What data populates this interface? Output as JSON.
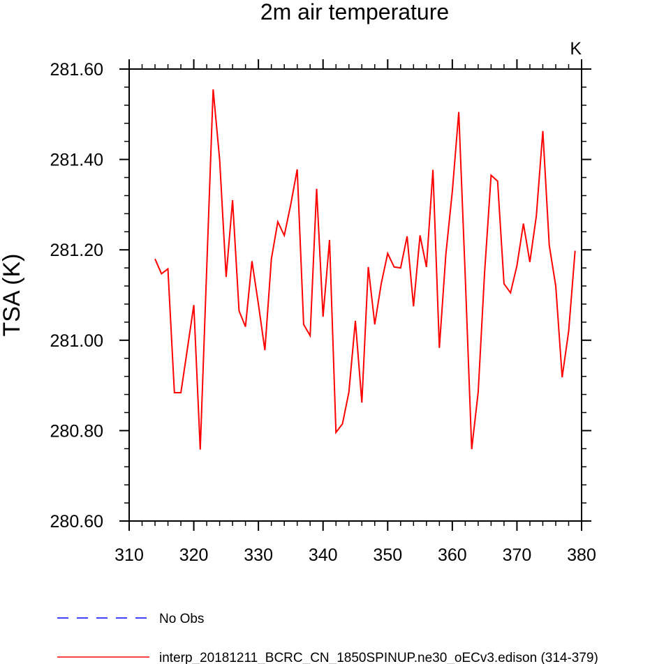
{
  "chart_data": {
    "type": "line",
    "title": "2m air temperature",
    "xlabel": "",
    "ylabel": "TSA  (K)",
    "units": "K",
    "xlim": [
      310,
      380
    ],
    "ylim": [
      280.6,
      281.6
    ],
    "xticks": [
      310,
      320,
      330,
      340,
      350,
      360,
      370,
      380
    ],
    "xtick_labels": [
      "310",
      "320",
      "330",
      "340",
      "350",
      "360",
      "370",
      "380"
    ],
    "yticks": [
      280.6,
      280.8,
      281.0,
      281.2,
      281.4,
      281.6
    ],
    "ytick_labels": [
      "280.60",
      "280.80",
      "281.00",
      "281.20",
      "281.40",
      "281.60"
    ],
    "grid": false,
    "legend_position": "bottom",
    "x": [
      314,
      315,
      316,
      317,
      318,
      319,
      320,
      321,
      322,
      323,
      324,
      325,
      326,
      327,
      328,
      329,
      330,
      331,
      332,
      333,
      334,
      335,
      336,
      337,
      338,
      339,
      340,
      341,
      342,
      343,
      344,
      345,
      346,
      347,
      348,
      349,
      350,
      351,
      352,
      353,
      354,
      355,
      356,
      357,
      358,
      359,
      360,
      361,
      362,
      363,
      364,
      365,
      366,
      367,
      368,
      369,
      370,
      371,
      372,
      373,
      374,
      375,
      376,
      377,
      378,
      379
    ],
    "series": [
      {
        "name": "interp_20181211_BCRC_CN_1850SPINUP.ne30_oECv3.edison (314-379)",
        "color": "#ff0000",
        "dash": "solid",
        "values": [
          281.18,
          281.147,
          281.158,
          280.884,
          280.884,
          280.98,
          281.078,
          280.758,
          281.16,
          281.555,
          281.4,
          281.14,
          281.31,
          281.065,
          281.03,
          281.175,
          281.08,
          280.978,
          281.18,
          281.262,
          281.232,
          281.3,
          281.378,
          281.035,
          281.01,
          281.335,
          281.052,
          281.222,
          280.796,
          280.815,
          280.885,
          281.043,
          280.862,
          281.162,
          281.035,
          281.125,
          281.192,
          281.162,
          281.16,
          281.23,
          281.075,
          281.232,
          281.162,
          281.377,
          280.983,
          281.19,
          281.33,
          281.505,
          281.14,
          280.759,
          280.885,
          281.15,
          281.365,
          281.352,
          281.125,
          281.105,
          281.165,
          281.258,
          281.173,
          281.275,
          281.463,
          281.21,
          281.12,
          280.918,
          281.02,
          281.198
        ]
      }
    ],
    "legend": [
      {
        "label": "No Obs",
        "color": "#0000ff",
        "dash": "dashed"
      },
      {
        "label": "interp_20181211_BCRC_CN_1850SPINUP.ne30_oECv3.edison (314-379)",
        "color": "#ff0000",
        "dash": "solid"
      }
    ]
  }
}
